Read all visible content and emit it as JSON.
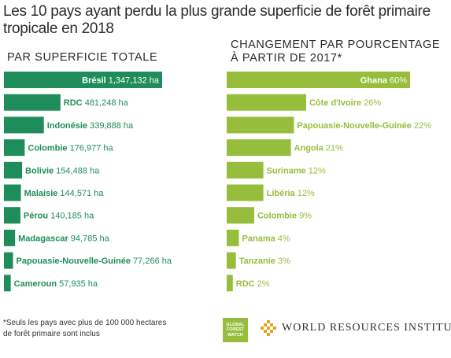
{
  "title": "Les 10 pays ayant perdu la plus grande superficie de forêt primaire tropicale en 2018",
  "footnote": "*Seuls les pays avec plus de 100 000 hectares de forêt primaire sont inclus",
  "logos": {
    "gfw": [
      "GLOBAL",
      "FOREST",
      "WATCH"
    ],
    "wri": "WORLD RESOURCES INSTITUTE"
  },
  "colors": {
    "left_bar": "#1f8d5a",
    "right_bar": "#96bd3b",
    "label_dark": "#ffffff"
  },
  "chart_data": [
    {
      "type": "bar",
      "orientation": "horizontal",
      "title": "PAR SUPERFICIE TOTALE",
      "unit": "ha",
      "categories": [
        "Brésil",
        "RDC",
        "Indonésie",
        "Colombie",
        "Bolivie",
        "Malaisie",
        "Pérou",
        "Madagascar",
        "Papouasie-Nouvelle-Guinée",
        "Cameroun"
      ],
      "values": [
        1347132,
        481248,
        339888,
        176977,
        154488,
        144571,
        140185,
        94785,
        77266,
        57935
      ],
      "value_labels": [
        "1,347,132 ha",
        "481,248 ha",
        "339,888 ha",
        "176,977 ha",
        "154,488 ha",
        "144,571 ha",
        "140,185 ha",
        "94,785 ha",
        "77,266 ha",
        "57,935 ha"
      ]
    },
    {
      "type": "bar",
      "orientation": "horizontal",
      "title": "CHANGEMENT PAR POURCENTAGE À PARTIR DE 2017*",
      "unit": "%",
      "categories": [
        "Ghana",
        "Côte d'Ivoire",
        "Papouasie-Nouvelle-Guinée",
        "Angola",
        "Suriname",
        "Libéria",
        "Colombie",
        "Panama",
        "Tanzanie",
        "RDC"
      ],
      "values": [
        60,
        26,
        22,
        21,
        12,
        12,
        9,
        4,
        3,
        2
      ],
      "value_labels": [
        "60%",
        "26%",
        "22%",
        "21%",
        "12%",
        "12%",
        "9%",
        "4%",
        "3%",
        "2%"
      ]
    }
  ]
}
